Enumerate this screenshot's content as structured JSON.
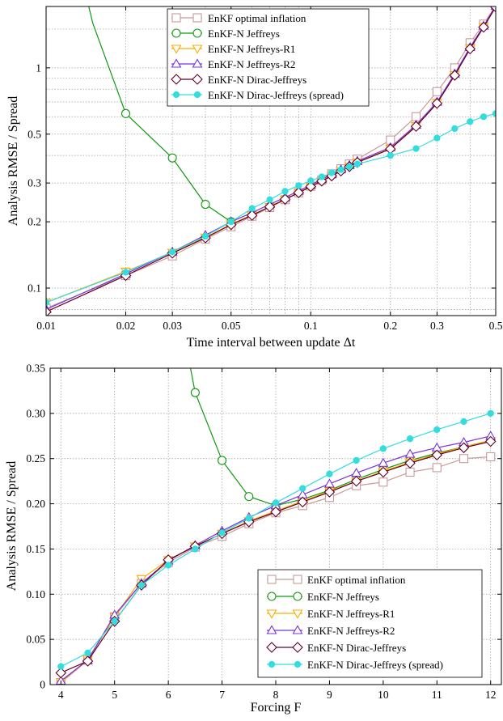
{
  "chart_data": [
    {
      "type": "line",
      "xscale": "log",
      "yscale": "log",
      "xlabel": "Time interval between update Δt",
      "ylabel": "Analysis RMSE / Spread",
      "xlim": [
        0.01,
        0.5
      ],
      "ylim": [
        0.075,
        1.9
      ],
      "xticks": [
        0.01,
        0.02,
        0.03,
        0.05,
        0.1,
        0.2,
        0.3,
        0.5
      ],
      "xtick_labels": [
        "0.01",
        "0.02",
        "0.03",
        "0.05",
        "0.1",
        "0.2",
        "0.3",
        "0.5"
      ],
      "yticks": [
        0.1,
        0.2,
        0.3,
        0.5,
        1
      ],
      "ytick_labels": [
        "0.1",
        "0.2",
        "0.3",
        "0.5",
        "1"
      ],
      "grid": true,
      "legend_position": "top-center",
      "x": [
        0.01,
        0.02,
        0.03,
        0.04,
        0.05,
        0.06,
        0.07,
        0.08,
        0.09,
        0.1,
        0.11,
        0.12,
        0.13,
        0.14,
        0.15,
        0.2,
        0.25,
        0.3,
        0.35,
        0.4,
        0.45,
        0.5
      ],
      "series": [
        {
          "name": "EnKF optimal inflation",
          "color": "#c89a9a",
          "marker": "square",
          "filled": false,
          "values": [
            0.081,
            0.114,
            0.14,
            0.167,
            0.19,
            0.212,
            0.232,
            0.252,
            0.271,
            0.29,
            0.309,
            0.33,
            0.348,
            0.366,
            0.385,
            0.47,
            0.6,
            0.78,
            1.0,
            1.3,
            1.58,
            1.92
          ]
        },
        {
          "name": "EnKF-N Jeffreys",
          "color": "#119911",
          "marker": "circle",
          "filled": false,
          "values": [
            null,
            0.62,
            0.39,
            0.24,
            0.2,
            null,
            null,
            null,
            null,
            null,
            null,
            null,
            null,
            null,
            null,
            null,
            null,
            null,
            null,
            null,
            null,
            null
          ]
        },
        {
          "name": "EnKF-N Jeffreys-R1",
          "color": "#ffaa00",
          "marker": "triangle-down",
          "filled": false,
          "values": [
            0.086,
            0.119,
            0.145,
            0.17,
            0.195,
            0.215,
            0.234,
            0.253,
            0.271,
            0.289,
            0.306,
            0.323,
            0.34,
            0.356,
            0.372,
            0.43,
            0.545,
            0.695,
            0.93,
            1.23,
            1.54,
            1.9
          ]
        },
        {
          "name": "EnKF-N Jeffreys-R2",
          "color": "#7733dd",
          "marker": "triangle-up",
          "filled": false,
          "values": [
            0.08,
            0.116,
            0.146,
            0.174,
            0.2,
            0.22,
            0.24,
            0.258,
            0.276,
            0.294,
            0.312,
            0.328,
            0.345,
            0.361,
            0.377,
            0.435,
            0.55,
            0.7,
            0.94,
            1.24,
            1.55,
            1.91
          ]
        },
        {
          "name": "EnKF-N Dirac-Jeffreys",
          "color": "#660022",
          "marker": "diamond",
          "filled": false,
          "values": [
            0.078,
            0.114,
            0.144,
            0.169,
            0.194,
            0.214,
            0.234,
            0.253,
            0.271,
            0.289,
            0.306,
            0.323,
            0.34,
            0.356,
            0.372,
            0.428,
            0.542,
            0.69,
            0.925,
            1.22,
            1.53,
            1.89
          ]
        },
        {
          "name": "EnKF-N Dirac-Jeffreys (spread)",
          "color": "#33dddd",
          "marker": "circle",
          "filled": true,
          "values": [
            0.086,
            0.118,
            0.146,
            0.172,
            0.2,
            0.23,
            0.252,
            0.275,
            0.292,
            0.307,
            0.32,
            0.334,
            0.345,
            0.356,
            0.366,
            0.4,
            0.43,
            0.48,
            0.53,
            0.57,
            0.6,
            0.62
          ]
        }
      ]
    },
    {
      "type": "line",
      "xlabel": "Forcing F",
      "ylabel": "Analysis RMSE / Spread",
      "xlim": [
        3.8,
        12.2
      ],
      "ylim": [
        0,
        0.35
      ],
      "xticks": [
        4,
        5,
        6,
        7,
        8,
        9,
        10,
        11,
        12
      ],
      "xtick_labels": [
        "4",
        "5",
        "6",
        "7",
        "8",
        "9",
        "10",
        "11",
        "12"
      ],
      "yticks": [
        0,
        0.05,
        0.1,
        0.15,
        0.2,
        0.25,
        0.3,
        0.35
      ],
      "ytick_labels": [
        "0",
        "0.05",
        "0.10",
        "0.15",
        "0.20",
        "0.25",
        "0.30",
        "0.35"
      ],
      "grid": true,
      "legend_position": "bottom-right",
      "x": [
        4,
        4.5,
        5,
        5.5,
        6,
        6.5,
        7,
        7.5,
        8,
        8.5,
        9,
        9.5,
        10,
        10.5,
        11,
        11.5,
        12
      ],
      "series": [
        {
          "name": "EnKF optimal inflation",
          "color": "#c89a9a",
          "marker": "square",
          "filled": false,
          "values": [
            0.002,
            0.027,
            0.075,
            0.112,
            0.135,
            0.152,
            0.164,
            0.178,
            0.19,
            0.198,
            0.207,
            0.22,
            0.224,
            0.235,
            0.24,
            0.25,
            0.252
          ]
        },
        {
          "name": "EnKF-N Jeffreys",
          "color": "#119911",
          "marker": "circle",
          "filled": false,
          "values": [
            null,
            null,
            null,
            null,
            null,
            0.323,
            0.248,
            0.208,
            0.198,
            0.205,
            0.215,
            0.227,
            0.238,
            0.248,
            0.256,
            0.263,
            0.27
          ]
        },
        {
          "name": "EnKF-N Jeffreys-R1",
          "color": "#ffaa00",
          "marker": "triangle-down",
          "filled": false,
          "values": [
            0.003,
            0.028,
            0.075,
            0.117,
            0.138,
            0.153,
            0.167,
            0.181,
            0.192,
            0.203,
            0.214,
            0.225,
            0.236,
            0.246,
            0.255,
            0.263,
            0.27
          ]
        },
        {
          "name": "EnKF-N Jeffreys-R2",
          "color": "#7733dd",
          "marker": "triangle-up",
          "filled": false,
          "values": [
            0.004,
            0.027,
            0.077,
            0.112,
            0.137,
            0.154,
            0.17,
            0.185,
            0.198,
            0.21,
            0.222,
            0.234,
            0.245,
            0.255,
            0.262,
            0.268,
            0.275
          ]
        },
        {
          "name": "EnKF-N Dirac-Jeffreys",
          "color": "#660022",
          "marker": "diamond",
          "filled": false,
          "values": [
            0.013,
            0.026,
            0.07,
            0.11,
            0.138,
            0.153,
            0.167,
            0.18,
            0.191,
            0.202,
            0.213,
            0.225,
            0.235,
            0.245,
            0.254,
            0.262,
            0.269
          ]
        },
        {
          "name": "EnKF-N Dirac-Jeffreys (spread)",
          "color": "#33dddd",
          "marker": "circle",
          "filled": true,
          "values": [
            0.02,
            0.035,
            0.07,
            0.11,
            0.132,
            0.15,
            0.168,
            0.184,
            0.201,
            0.217,
            0.233,
            0.248,
            0.261,
            0.272,
            0.282,
            0.291,
            0.3
          ]
        }
      ]
    }
  ],
  "legend_top": [
    {
      "label": "EnKF optimal inflation"
    },
    {
      "label": "EnKF-N Jeffreys"
    },
    {
      "label": "EnKF-N Jeffreys-R1"
    },
    {
      "label": "EnKF-N Jeffreys-R2"
    },
    {
      "label": "EnKF-N Dirac-Jeffreys"
    },
    {
      "label": "EnKF-N Dirac-Jeffreys (spread)"
    }
  ],
  "legend_bottom": [
    {
      "label": "EnKF optimal inflation"
    },
    {
      "label": "EnKF-N Jeffreys"
    },
    {
      "label": "EnKF-N Jeffreys-R1"
    },
    {
      "label": "EnKF-N Jeffreys-R2"
    },
    {
      "label": "EnKF-N Dirac-Jeffreys"
    },
    {
      "label": "EnKF-N Dirac-Jeffreys (spread)"
    }
  ]
}
